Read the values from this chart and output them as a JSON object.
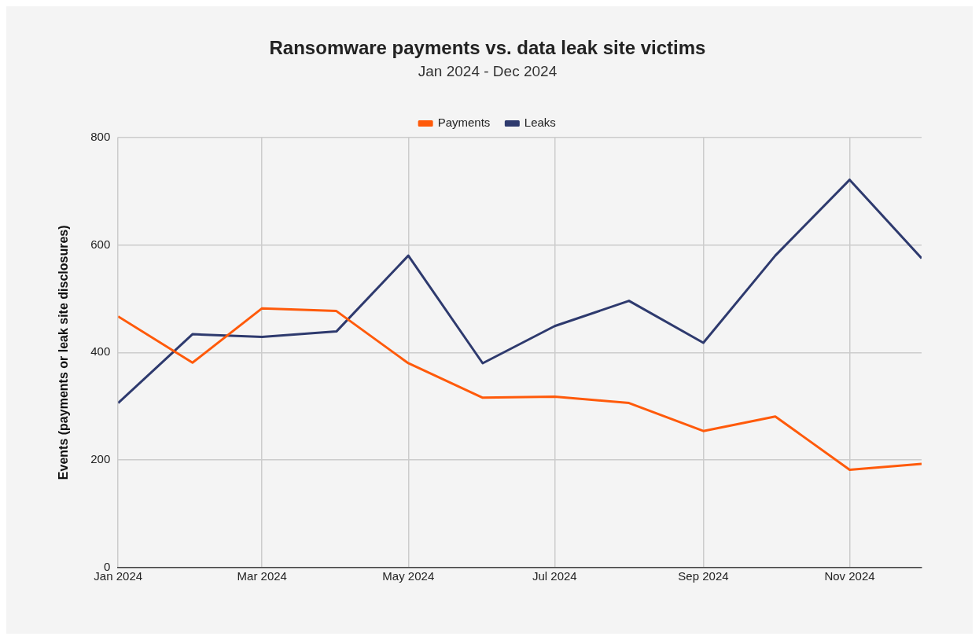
{
  "chart_data": {
    "type": "line",
    "title": "Ransomware payments vs. data leak site victims",
    "subtitle": "Jan 2024 - Dec 2024",
    "ylabel": "Events (payments or leak site disclosures)",
    "x": [
      "2024-01",
      "2024-02",
      "2024-03",
      "2024-04",
      "2024-05",
      "2024-06",
      "2024-07",
      "2024-08",
      "2024-09",
      "2024-10",
      "2024-11",
      "2024-12"
    ],
    "series": [
      {
        "name": "Payments",
        "color": "#ff5a0a",
        "values": [
          467,
          381,
          482,
          477,
          380,
          316,
          318,
          306,
          254,
          281,
          182,
          193
        ]
      },
      {
        "name": "Leaks",
        "color": "#2e3a6e",
        "values": [
          306,
          434,
          429,
          439,
          580,
          380,
          449,
          496,
          418,
          580,
          721,
          575
        ]
      }
    ],
    "xlim": [
      "2024-01",
      "2024-12"
    ],
    "xticks": [
      {
        "value": "2024-01",
        "label": "Jan 2024"
      },
      {
        "value": "2024-03",
        "label": "Mar 2024"
      },
      {
        "value": "2024-05",
        "label": "May 2024"
      },
      {
        "value": "2024-07",
        "label": "Jul 2024"
      },
      {
        "value": "2024-09",
        "label": "Sep 2024"
      },
      {
        "value": "2024-11",
        "label": "Nov 2024"
      }
    ],
    "ylim": [
      0,
      800
    ],
    "yticks": [
      0,
      200,
      400,
      600,
      800
    ],
    "grid": true,
    "legend": "top",
    "marker": "none",
    "line_style": "solid"
  }
}
